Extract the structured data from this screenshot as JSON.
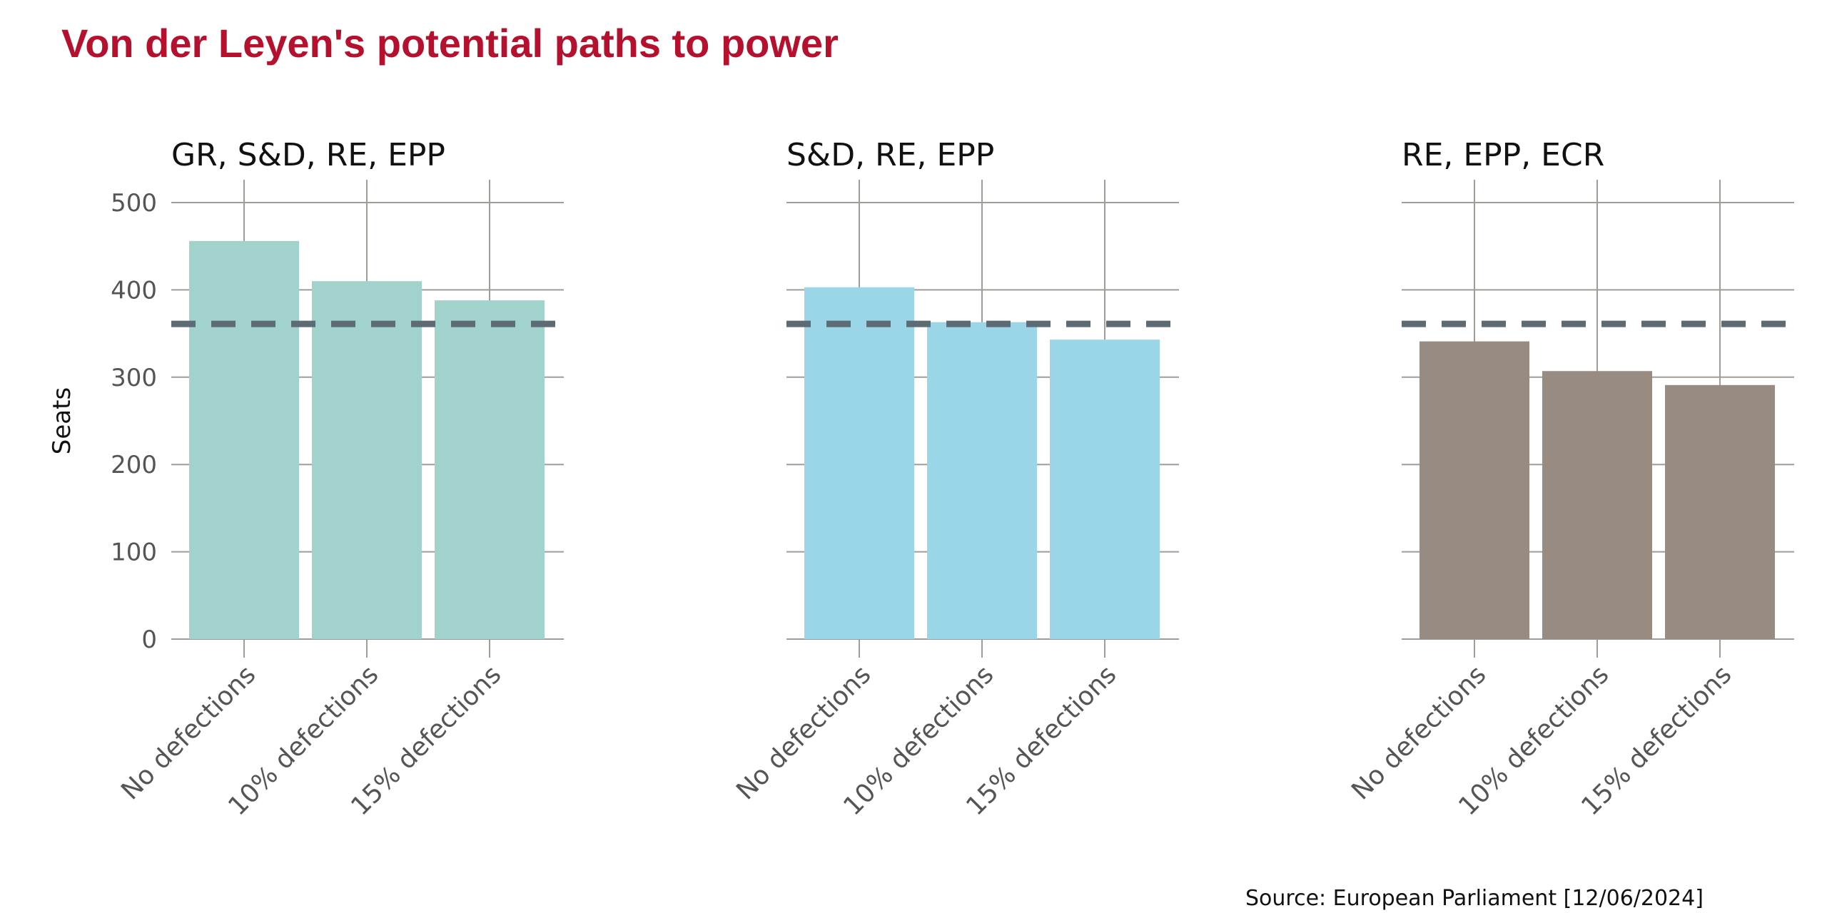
{
  "title": "Von der Leyen's potential paths to power",
  "source": "Source: European Parliament [12/06/2024]",
  "colors": {
    "title": "#b5102e",
    "threshold": "#5d6b75",
    "grid": "#a09d97",
    "panel_1": "#a2d2cc",
    "panel_2": "#9ad5e8",
    "panel_3": "#978b82"
  },
  "chart_data": {
    "type": "bar",
    "ylabel": "Seats",
    "ylim": [
      0,
      500
    ],
    "yticks": [
      "0",
      "100",
      "200",
      "300",
      "400",
      "500"
    ],
    "threshold": 361,
    "grid": true,
    "panels": [
      {
        "title": "GR, S&D, RE, EPP",
        "color": "#a2d2cc",
        "categories": [
          "No defections",
          "10% defections",
          "15% defections"
        ],
        "values": [
          456,
          410,
          388
        ]
      },
      {
        "title": "S&D, RE, EPP",
        "color": "#9ad5e8",
        "categories": [
          "No defections",
          "10% defections",
          "15% defections"
        ],
        "values": [
          403,
          363,
          343
        ]
      },
      {
        "title": "RE, EPP, ECR",
        "color": "#978b82",
        "categories": [
          "No defections",
          "10% defections",
          "15% defections"
        ],
        "values": [
          341,
          307,
          291
        ]
      }
    ]
  }
}
